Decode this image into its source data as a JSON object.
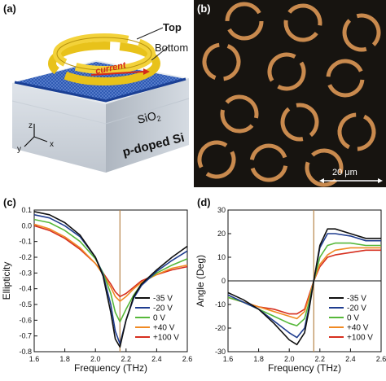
{
  "figure": {
    "panel_labels": [
      "(a)",
      "(b)",
      "(c)",
      "(d)"
    ],
    "schematic": {
      "top_label": "Top",
      "bottom_label": "Bottom",
      "current_label": "current",
      "sio2_label": "SiO",
      "sio2_sub": "2",
      "substrate_label": "p-doped Si",
      "axis_z": "z",
      "axis_y": "y",
      "axis_x": "x"
    },
    "micrograph": {
      "scale_bar_label": "20 μm",
      "colors": {
        "background": "#171410",
        "ring": "#c98a4e",
        "scale": "#ffffff"
      }
    },
    "colors": {
      "-35 V": "#101010",
      "-20 V": "#1f3d8f",
      "0 V": "#56b83a",
      "+40 V": "#f08a24",
      "+100 V": "#d62f1f",
      "marker": "#b8864a"
    }
  },
  "chart_data": [
    {
      "type": "line",
      "panel": "(c)",
      "xlabel": "Frequency (THz)",
      "ylabel": "Ellipticity",
      "xlim": [
        1.6,
        2.6
      ],
      "ylim": [
        -0.8,
        0.1
      ],
      "xticks": [
        "1.6",
        "1.8",
        "2.0",
        "2.2",
        "2.4",
        "2.6"
      ],
      "yticks": [
        "0.1",
        "0.0",
        "-0.1",
        "-0.2",
        "-0.3",
        "-0.4",
        "-0.5",
        "-0.6",
        "-0.7",
        "-0.8"
      ],
      "vline": 2.16,
      "legend": "lower-right",
      "series": [
        {
          "name": "-35 V",
          "x": [
            1.6,
            1.7,
            1.8,
            1.9,
            2.0,
            2.05,
            2.1,
            2.13,
            2.16,
            2.2,
            2.25,
            2.3,
            2.4,
            2.5,
            2.6
          ],
          "y": [
            0.09,
            0.07,
            0.02,
            -0.06,
            -0.2,
            -0.32,
            -0.55,
            -0.72,
            -0.77,
            -0.6,
            -0.45,
            -0.37,
            -0.28,
            -0.2,
            -0.13
          ]
        },
        {
          "name": "-20 V",
          "x": [
            1.6,
            1.7,
            1.8,
            1.9,
            2.0,
            2.05,
            2.1,
            2.13,
            2.16,
            2.2,
            2.25,
            2.3,
            2.4,
            2.5,
            2.6
          ],
          "y": [
            0.07,
            0.05,
            0.0,
            -0.07,
            -0.2,
            -0.31,
            -0.5,
            -0.67,
            -0.75,
            -0.6,
            -0.46,
            -0.38,
            -0.29,
            -0.22,
            -0.16
          ]
        },
        {
          "name": "0 V",
          "x": [
            1.6,
            1.7,
            1.8,
            1.9,
            2.0,
            2.05,
            2.1,
            2.13,
            2.16,
            2.2,
            2.25,
            2.3,
            2.4,
            2.5,
            2.6
          ],
          "y": [
            0.04,
            0.02,
            -0.03,
            -0.1,
            -0.21,
            -0.3,
            -0.43,
            -0.55,
            -0.61,
            -0.53,
            -0.44,
            -0.37,
            -0.3,
            -0.25,
            -0.21
          ]
        },
        {
          "name": "+40 V",
          "x": [
            1.6,
            1.7,
            1.8,
            1.9,
            2.0,
            2.05,
            2.1,
            2.13,
            2.16,
            2.2,
            2.25,
            2.3,
            2.4,
            2.5,
            2.6
          ],
          "y": [
            0.01,
            -0.02,
            -0.07,
            -0.14,
            -0.24,
            -0.31,
            -0.39,
            -0.45,
            -0.48,
            -0.45,
            -0.4,
            -0.36,
            -0.31,
            -0.27,
            -0.25
          ]
        },
        {
          "name": "+100 V",
          "x": [
            1.6,
            1.7,
            1.8,
            1.9,
            2.0,
            2.05,
            2.1,
            2.13,
            2.16,
            2.2,
            2.25,
            2.3,
            2.4,
            2.5,
            2.6
          ],
          "y": [
            0.0,
            -0.03,
            -0.08,
            -0.15,
            -0.24,
            -0.3,
            -0.37,
            -0.42,
            -0.45,
            -0.43,
            -0.39,
            -0.35,
            -0.31,
            -0.28,
            -0.26
          ]
        }
      ]
    },
    {
      "type": "line",
      "panel": "(d)",
      "xlabel": "Frequency (THz)",
      "ylabel": "Angle (Deg)",
      "xlim": [
        1.6,
        2.6
      ],
      "ylim": [
        -30,
        30
      ],
      "xticks": [
        "1.6",
        "1.8",
        "2.0",
        "2.2",
        "2.4",
        "2.6"
      ],
      "yticks": [
        "30",
        "20",
        "10",
        "0",
        "-10",
        "-20",
        "-30"
      ],
      "vline": 2.16,
      "hline": 0,
      "legend": "lower-right",
      "series": [
        {
          "name": "-35 V",
          "x": [
            1.6,
            1.7,
            1.8,
            1.9,
            2.0,
            2.05,
            2.1,
            2.13,
            2.16,
            2.2,
            2.25,
            2.3,
            2.4,
            2.5,
            2.6
          ],
          "y": [
            -5,
            -8,
            -12,
            -18,
            -25,
            -27,
            -22,
            -12,
            0,
            15,
            22,
            22,
            20,
            18,
            18
          ]
        },
        {
          "name": "-20 V",
          "x": [
            1.6,
            1.7,
            1.8,
            1.9,
            2.0,
            2.05,
            2.1,
            2.13,
            2.16,
            2.2,
            2.25,
            2.3,
            2.4,
            2.5,
            2.6
          ],
          "y": [
            -6,
            -9,
            -12,
            -17,
            -22,
            -24,
            -20,
            -11,
            0,
            14,
            20,
            20,
            19,
            17,
            17
          ]
        },
        {
          "name": "0 V",
          "x": [
            1.6,
            1.7,
            1.8,
            1.9,
            2.0,
            2.05,
            2.1,
            2.13,
            2.16,
            2.2,
            2.25,
            2.3,
            2.4,
            2.5,
            2.6
          ],
          "y": [
            -7,
            -9,
            -12,
            -15,
            -18,
            -19,
            -16,
            -9,
            0,
            10,
            15,
            16,
            16,
            15,
            15
          ]
        },
        {
          "name": "+40 V",
          "x": [
            1.6,
            1.7,
            1.8,
            1.9,
            2.0,
            2.05,
            2.1,
            2.13,
            2.16,
            2.2,
            2.25,
            2.3,
            2.4,
            2.5,
            2.6
          ],
          "y": [
            -7,
            -9,
            -11,
            -13,
            -15,
            -16,
            -13,
            -7,
            0,
            7,
            11,
            13,
            14,
            14,
            14
          ]
        },
        {
          "name": "+100 V",
          "x": [
            1.6,
            1.7,
            1.8,
            1.9,
            2.0,
            2.05,
            2.1,
            2.13,
            2.16,
            2.2,
            2.25,
            2.3,
            2.4,
            2.5,
            2.6
          ],
          "y": [
            -7,
            -9,
            -11,
            -12,
            -14,
            -14,
            -12,
            -6,
            0,
            6,
            10,
            11,
            12,
            13,
            13
          ]
        }
      ]
    }
  ]
}
